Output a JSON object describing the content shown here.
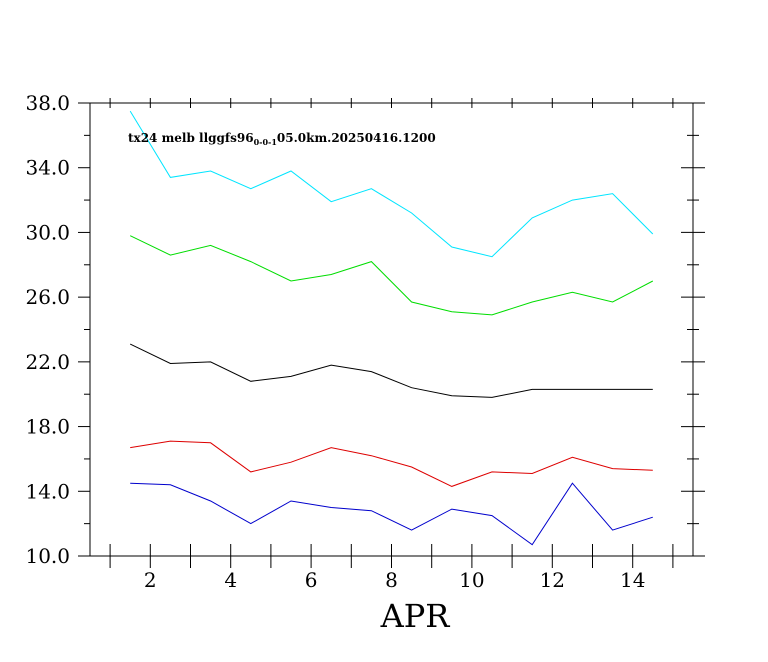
{
  "chart_data": {
    "type": "line",
    "annotation": {
      "prefix": "tx24 melb llggfs96",
      "subscript": "0-0-1",
      "suffix": "05.0km.20250416.1200"
    },
    "xlabel": "APR",
    "ylabel": "",
    "xlim": [
      0.5,
      15.5
    ],
    "ylim": [
      10.0,
      38.0
    ],
    "x_ticks": [
      2,
      4,
      6,
      8,
      10,
      12,
      14
    ],
    "x_tick_labels": [
      "2",
      "4",
      "6",
      "8",
      "10",
      "12",
      "14"
    ],
    "y_ticks": [
      10.0,
      14.0,
      18.0,
      22.0,
      26.0,
      30.0,
      34.0,
      38.0
    ],
    "y_tick_labels": [
      "10.0",
      "14.0",
      "18.0",
      "22.0",
      "26.0",
      "30.0",
      "34.0",
      "38.0"
    ],
    "x": [
      1.5,
      2.5,
      3.5,
      4.5,
      5.5,
      6.5,
      7.5,
      8.5,
      9.5,
      10.5,
      11.5,
      12.5,
      13.5,
      14.5
    ],
    "series": [
      {
        "color": "#00e5ff",
        "values": [
          37.5,
          33.4,
          33.8,
          32.7,
          33.8,
          31.9,
          32.7,
          31.2,
          29.1,
          28.5,
          30.9,
          32.0,
          32.4,
          29.9
        ]
      },
      {
        "color": "#00dd00",
        "values": [
          29.8,
          28.6,
          29.2,
          28.2,
          27.0,
          27.4,
          28.2,
          25.7,
          25.1,
          24.9,
          25.7,
          26.3,
          25.7,
          27.0
        ]
      },
      {
        "color": "#000000",
        "values": [
          23.1,
          21.9,
          22.0,
          20.8,
          21.1,
          21.8,
          21.4,
          20.4,
          19.9,
          19.8,
          20.3,
          20.3,
          20.3,
          20.3
        ]
      },
      {
        "color": "#dd0000",
        "values": [
          16.7,
          17.1,
          17.0,
          15.2,
          15.8,
          16.7,
          16.2,
          15.5,
          14.3,
          15.2,
          15.1,
          16.1,
          15.4,
          15.3
        ]
      },
      {
        "color": "#0000cc",
        "values": [
          14.5,
          14.4,
          13.4,
          12.0,
          13.4,
          13.0,
          12.8,
          11.6,
          12.9,
          12.5,
          10.7,
          14.5,
          11.6,
          12.4
        ]
      }
    ]
  }
}
